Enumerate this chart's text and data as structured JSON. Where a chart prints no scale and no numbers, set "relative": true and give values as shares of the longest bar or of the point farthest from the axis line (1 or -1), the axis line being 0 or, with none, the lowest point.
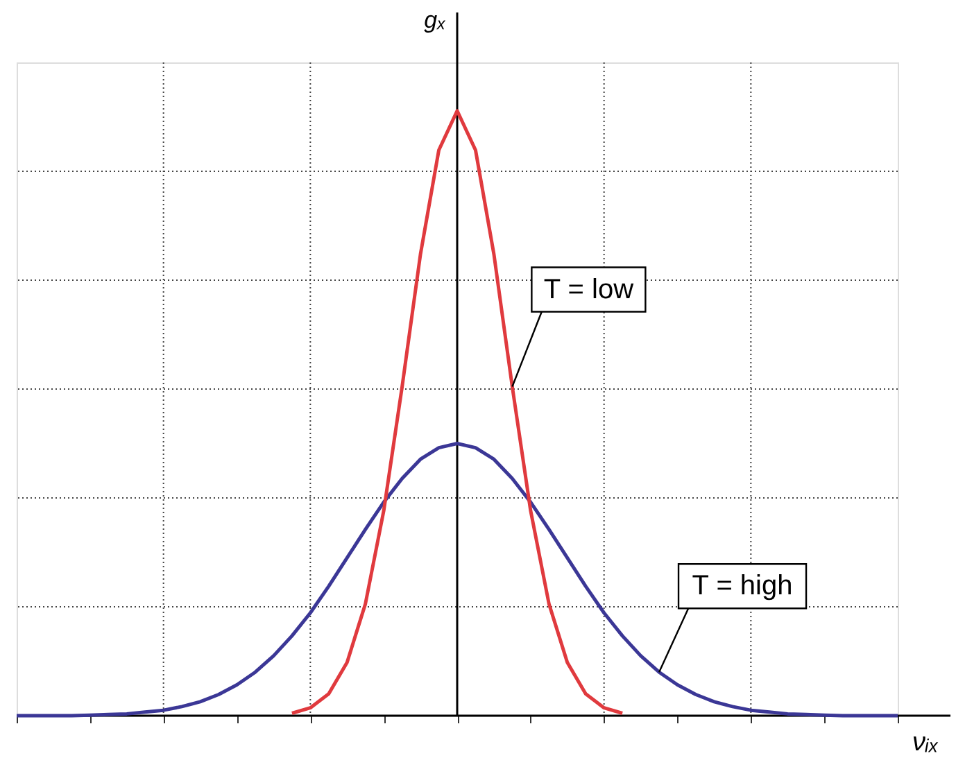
{
  "chart_data": {
    "type": "line",
    "relative": true,
    "xlabel": "νᵢₓ",
    "ylabel": "gₓ",
    "grid": true,
    "legend": false,
    "marker": "none",
    "line_style": "solid",
    "categories": [
      null,
      null,
      null,
      null,
      null,
      null,
      null,
      null,
      null,
      null,
      null,
      null,
      null,
      null,
      null,
      null,
      null,
      null,
      null,
      null,
      null,
      null,
      null,
      null,
      null,
      null,
      null,
      null,
      null,
      null,
      null,
      null,
      null,
      null,
      null,
      null,
      null,
      null,
      null,
      null,
      null,
      null,
      null,
      null,
      null,
      null,
      null,
      null,
      null
    ],
    "series": [
      {
        "name": "T = high",
        "color": "#3b3796",
        "values": [
          0,
          0,
          0,
          0,
          0.001,
          0.002,
          0.003,
          0.006,
          0.009,
          0.015,
          0.023,
          0.035,
          0.051,
          0.072,
          0.099,
          0.132,
          0.17,
          0.214,
          0.261,
          0.308,
          0.353,
          0.392,
          0.424,
          0.443,
          0.45,
          0.443,
          0.424,
          0.392,
          0.353,
          0.308,
          0.261,
          0.214,
          0.17,
          0.132,
          0.099,
          0.072,
          0.051,
          0.035,
          0.023,
          0.015,
          0.009,
          0.006,
          0.003,
          0.002,
          0.001,
          0,
          0,
          0,
          0
        ]
      },
      {
        "name": "T = low",
        "color": "#e03a3e",
        "values": [
          null,
          null,
          null,
          null,
          null,
          null,
          null,
          null,
          null,
          null,
          null,
          null,
          null,
          null,
          null,
          0.004,
          0.013,
          0.036,
          0.088,
          0.185,
          0.339,
          0.544,
          0.763,
          0.935,
          1,
          0.935,
          0.763,
          0.544,
          0.339,
          0.185,
          0.088,
          0.036,
          0.013,
          0.004,
          null,
          null,
          null,
          null,
          null,
          null,
          null,
          null,
          null,
          null,
          null,
          null,
          null,
          null,
          null
        ]
      }
    ]
  }
}
